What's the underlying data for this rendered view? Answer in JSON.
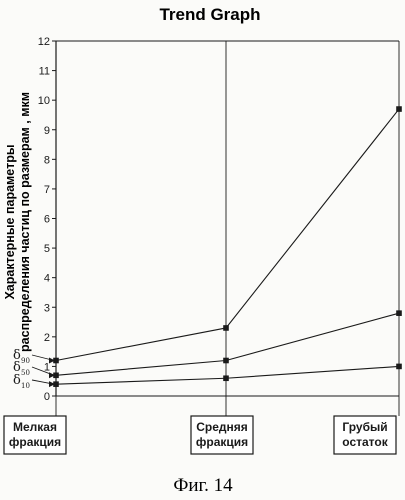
{
  "chart_data": {
    "type": "line",
    "title": "Trend Graph",
    "ylabel_lines": [
      "Характерные параметры",
      "распределения частиц по размерам , мкм"
    ],
    "xlabel": "",
    "ylim": [
      0,
      12
    ],
    "yticks": [
      0,
      1,
      2,
      3,
      4,
      5,
      6,
      7,
      8,
      9,
      10,
      11,
      12
    ],
    "categories": [
      [
        "Мелкая",
        "фракция"
      ],
      [
        "Средняя",
        "фракция"
      ],
      [
        "Грубый",
        "остаток"
      ]
    ],
    "series": [
      {
        "label_main": "δ",
        "label_sub": "90",
        "values": [
          1.2,
          2.3,
          9.7
        ]
      },
      {
        "label_main": "δ",
        "label_sub": "50",
        "values": [
          0.7,
          1.2,
          2.8
        ]
      },
      {
        "label_main": "δ",
        "label_sub": "10",
        "values": [
          0.4,
          0.6,
          1.0
        ]
      }
    ],
    "grid": "vertical",
    "marker": "square",
    "line_color": "#1a1a1a"
  },
  "caption": "Фиг. 14"
}
